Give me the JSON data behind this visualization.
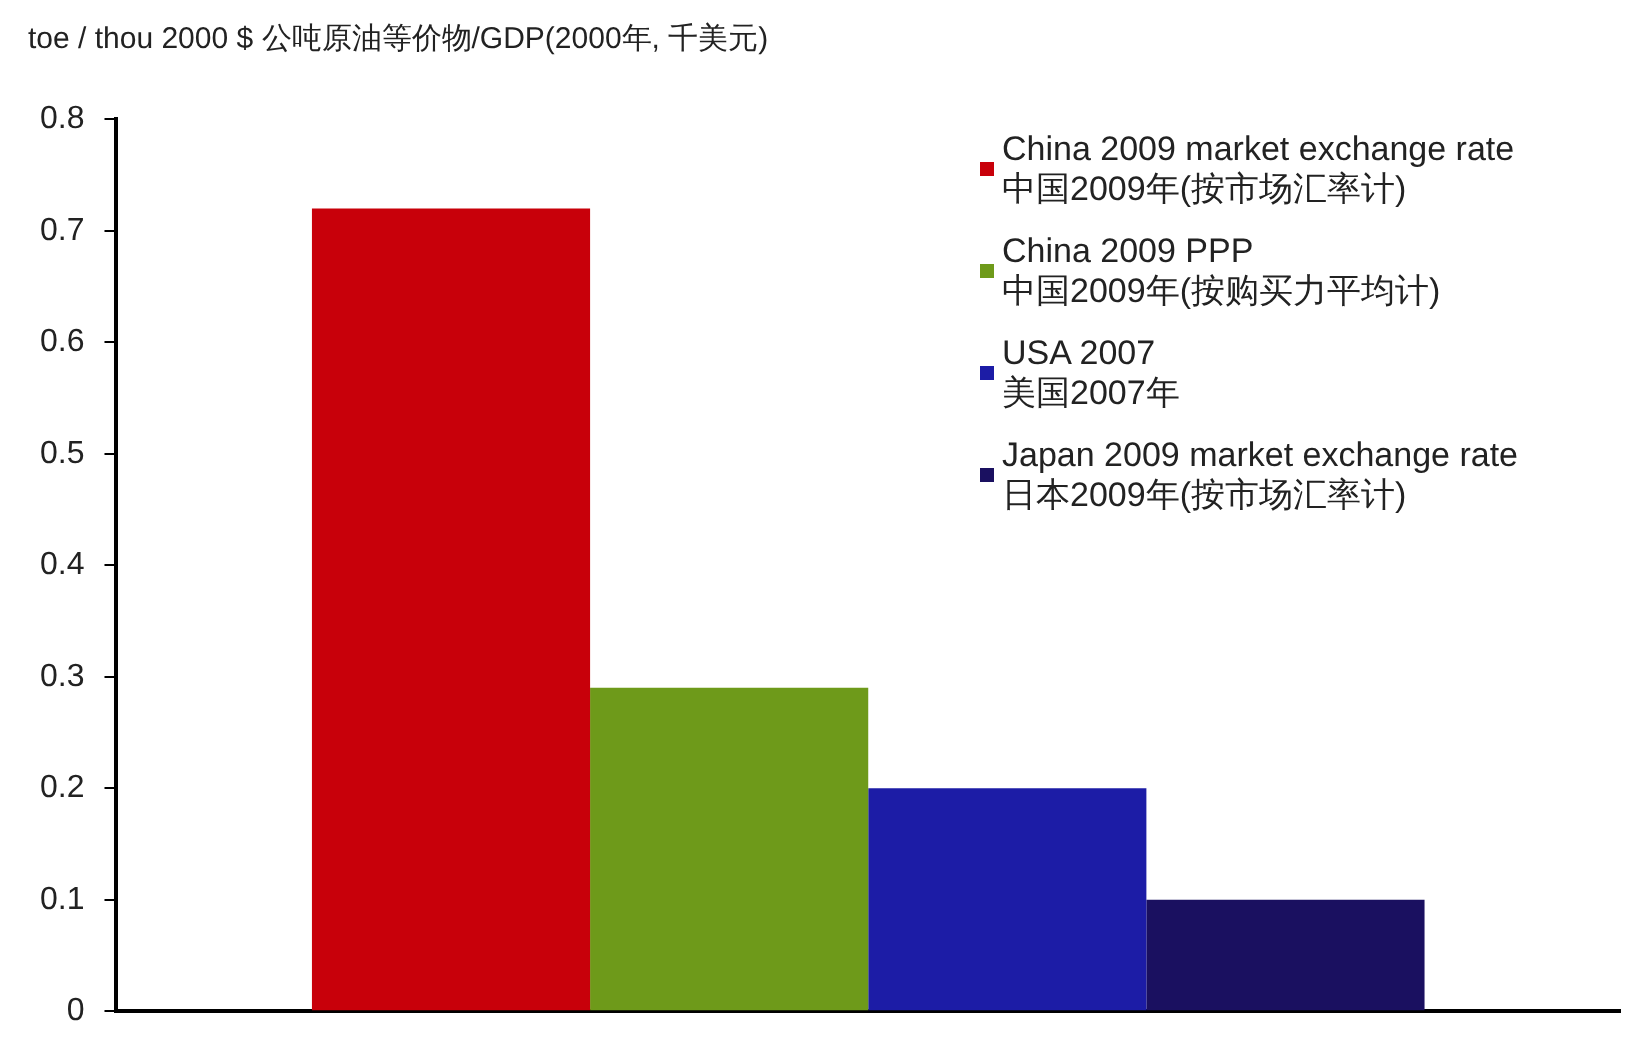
{
  "chart_data": {
    "type": "bar",
    "ylabel": "toe / thou 2000 $ 公吨原油等价物/GDP(2000年, 千美元)",
    "categories": [
      null
    ],
    "series": [
      {
        "name": "China 2009 market exchange rate\n中国2009年(按市场汇率计)",
        "color": "#c8000a",
        "values": [
          0.72
        ]
      },
      {
        "name": "China 2009 PPP\n中国2009年(按购买力平均计)",
        "color": "#6e9a1a",
        "values": [
          0.29
        ]
      },
      {
        "name": "USA 2007\n美国2007年",
        "color": "#1c1ca6",
        "values": [
          0.2
        ]
      },
      {
        "name": "Japan 2009 market exchange rate\n日本2009年(按市场汇率计)",
        "color": "#1a1060",
        "values": [
          0.1
        ]
      }
    ],
    "ylim": [
      0,
      0.8
    ],
    "yticks": [
      0,
      0.1,
      0.2,
      0.3,
      0.4,
      0.5,
      0.6,
      0.7,
      0.8
    ],
    "grid": false,
    "legend": "top right"
  }
}
